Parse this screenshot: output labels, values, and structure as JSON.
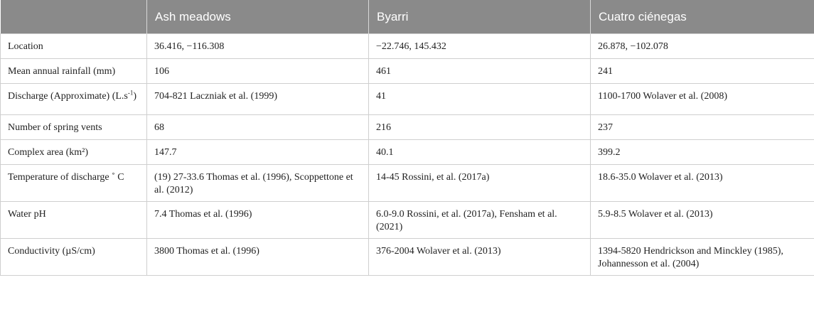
{
  "table": {
    "headers": [
      "",
      "Ash meadows",
      "Byarri",
      "Cuatro ciénegas"
    ],
    "rows": [
      {
        "label": "Location",
        "cells": [
          "36.416, −116.308",
          "−22.746, 145.432",
          "26.878, −102.078"
        ]
      },
      {
        "label": "Mean annual rainfall (mm)",
        "cells": [
          "106",
          "461",
          "241"
        ]
      },
      {
        "label_main": "Discharge (Approximate) (L.s",
        "label_sup": "-1",
        "label_end": ")",
        "cells": [
          "704-821 Laczniak et al. (1999)",
          "41",
          "1100-1700 Wolaver et al. (2008)"
        ]
      },
      {
        "label": "Number of spring vents",
        "cells": [
          "68",
          "216",
          "237"
        ]
      },
      {
        "label": "Complex area (km²)",
        "cells": [
          "147.7",
          "40.1",
          "399.2"
        ]
      },
      {
        "label": "Temperature of discharge ˚ C",
        "cells": [
          "(19) 27-33.6 Thomas et al. (1996), Scoppettone et al. (2012)",
          "14-45 Rossini, et al. (2017a)",
          "18.6-35.0 Wolaver et al. (2013)"
        ]
      },
      {
        "label": "Water pH",
        "cells": [
          "7.4 Thomas et al. (1996)",
          "6.0-9.0 Rossini, et al. (2017a), Fensham et al. (2021)",
          "5.9-8.5 Wolaver et al. (2013)"
        ]
      },
      {
        "label": "Conductivity (µS/cm)",
        "cells": [
          "3800 Thomas et al. (1996)",
          "376-2004 Wolaver et al. (2013)",
          "1394-5820 Hendrickson and Minckley (1985), Johannesson et al. (2004)"
        ]
      }
    ]
  }
}
